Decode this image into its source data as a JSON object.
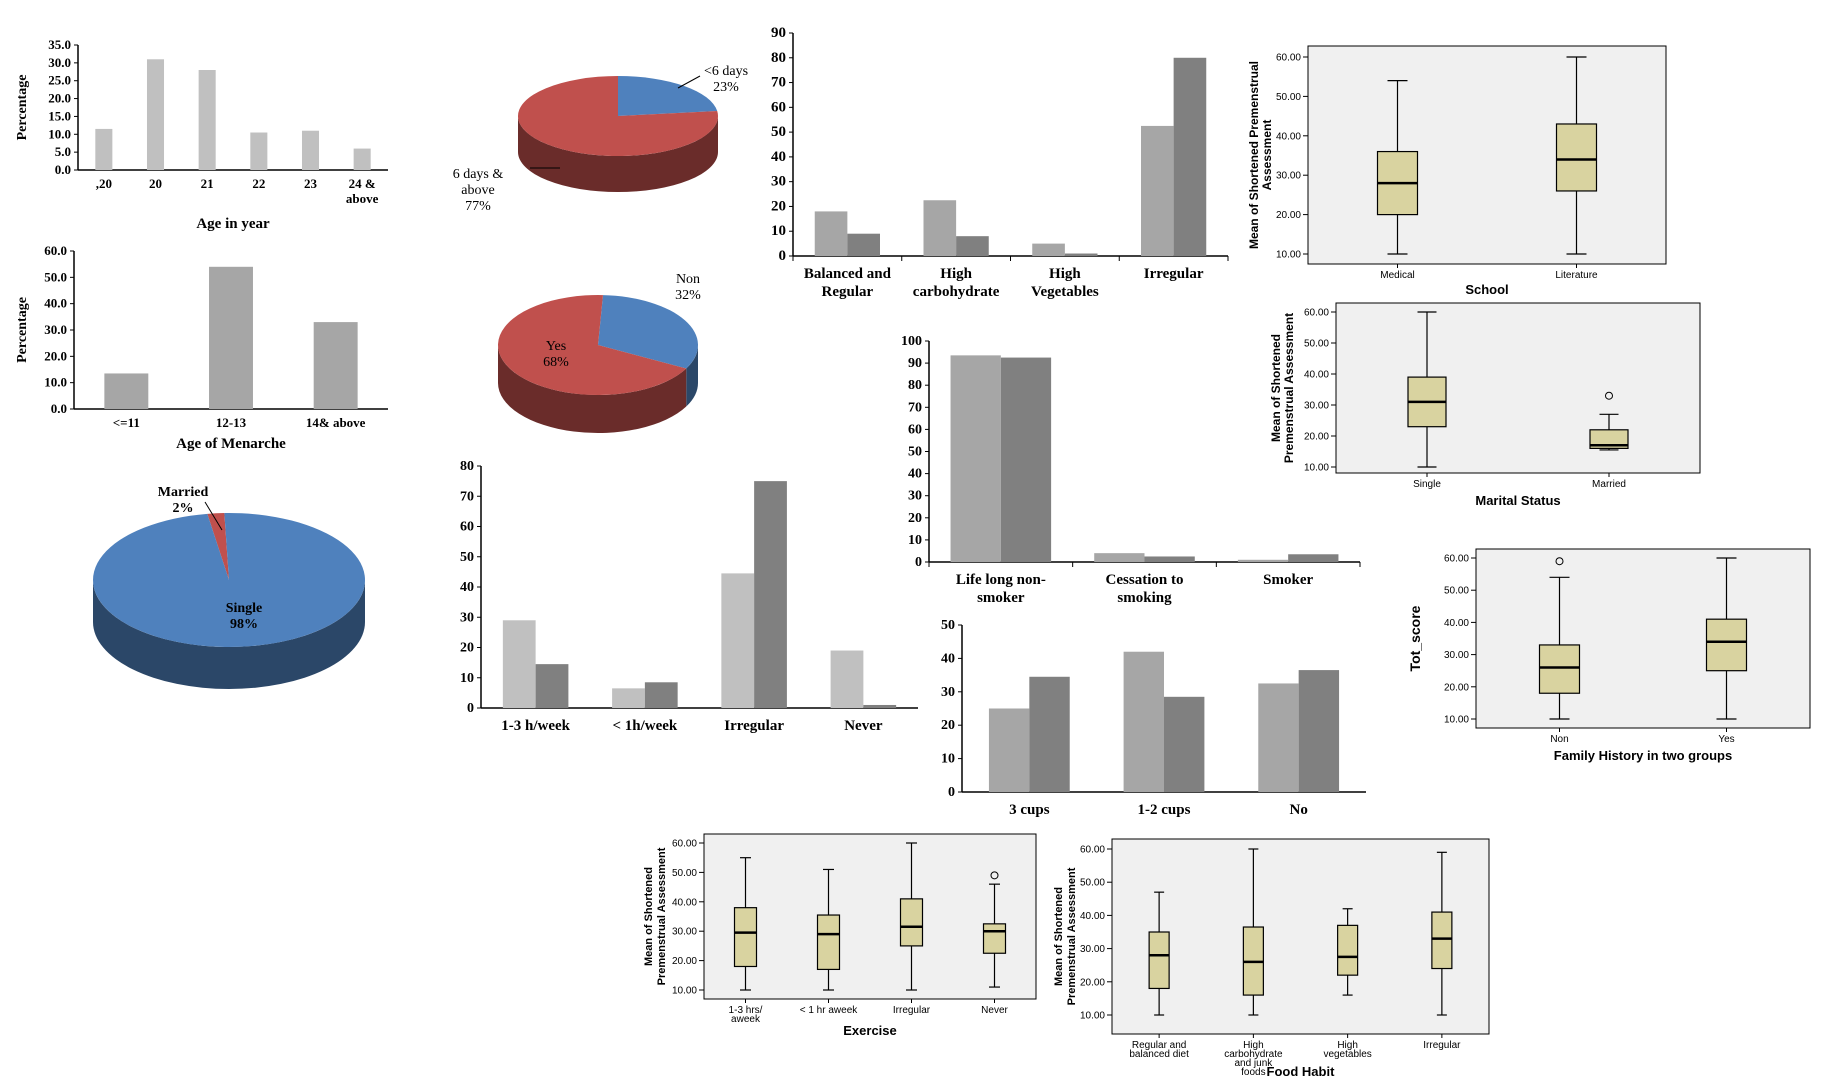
{
  "chart_data": [
    {
      "id": "c1",
      "type": "bar",
      "categories": [
        ",20",
        "20",
        "21",
        "22",
        "23",
        "24 & above"
      ],
      "values": [
        11.5,
        31.0,
        28.0,
        10.5,
        11.0,
        6.0
      ],
      "ylim": [
        0,
        35
      ],
      "yticks": [
        "0.0",
        "5.0",
        "10.0",
        "15.0",
        "20.0",
        "25.0",
        "30.0",
        "35.0"
      ],
      "xlabel": "Age in year",
      "ylabel": "Percentage",
      "colors": [
        "#c0c0c0"
      ]
    },
    {
      "id": "c2",
      "type": "pie",
      "slices": [
        {
          "label": "<6 days",
          "value": 23,
          "text": "23%",
          "color": "#4f81bd"
        },
        {
          "label": "6 days & above",
          "value": 77,
          "text": "77%",
          "color": "#c0504d"
        }
      ]
    },
    {
      "id": "c3",
      "type": "bar",
      "categories": [
        "Balanced and Regular",
        "High carbohydrate",
        "High Vegetables",
        "Irregular"
      ],
      "series": [
        {
          "values": [
            18,
            22.5,
            5,
            52.5
          ]
        },
        {
          "values": [
            9,
            8,
            1,
            80
          ]
        }
      ],
      "ylim": [
        0,
        90
      ],
      "yticks": [
        "0",
        "10",
        "20",
        "30",
        "40",
        "50",
        "60",
        "70",
        "80",
        "90"
      ],
      "colors": [
        "#a6a6a6",
        "#808080"
      ]
    },
    {
      "id": "c4",
      "type": "boxplot",
      "categories": [
        "Medical",
        "Literature"
      ],
      "boxes": [
        {
          "min": 10,
          "q1": 20,
          "median": 28,
          "q3": 36,
          "max": 54
        },
        {
          "min": 10,
          "q1": 26,
          "median": 34,
          "q3": 43,
          "max": 60
        }
      ],
      "ylim": [
        10,
        60
      ],
      "yticks": [
        "10.00",
        "20.00",
        "30.00",
        "40.00",
        "50.00",
        "60.00"
      ],
      "xlabel": "School",
      "ylabel": "Mean of Shortened Premenstrual Assessment"
    },
    {
      "id": "c5",
      "type": "bar",
      "categories": [
        "<=11",
        "12-13",
        "14& above"
      ],
      "values": [
        13.5,
        54.0,
        33.0
      ],
      "ylim": [
        0,
        60
      ],
      "yticks": [
        "0.0",
        "10.0",
        "20.0",
        "30.0",
        "40.0",
        "50.0",
        "60.0"
      ],
      "xlabel": "Age of Menarche",
      "ylabel": "Percentage",
      "colors": [
        "#a6a6a6"
      ]
    },
    {
      "id": "c6",
      "type": "pie",
      "slices": [
        {
          "label": "Non",
          "value": 32,
          "text": "32%",
          "color": "#4f81bd"
        },
        {
          "label": "Yes",
          "value": 68,
          "text": "68%",
          "color": "#c0504d"
        }
      ]
    },
    {
      "id": "c7",
      "type": "boxplot",
      "categories": [
        "Single",
        "Married"
      ],
      "boxes": [
        {
          "min": 10,
          "q1": 23,
          "median": 31,
          "q3": 39,
          "max": 60
        },
        {
          "min": 15.5,
          "q1": 16,
          "median": 17,
          "q3": 22,
          "max": 27,
          "outliers": [
            33
          ]
        }
      ],
      "ylim": [
        10,
        60
      ],
      "yticks": [
        "10.00",
        "20.00",
        "30.00",
        "40.00",
        "50.00",
        "60.00"
      ],
      "xlabel": "Marital Status",
      "ylabel": "Mean of Shortened Premenstrual Assessment"
    },
    {
      "id": "c8",
      "type": "pie",
      "slices": [
        {
          "label": "Married",
          "value": 2,
          "text": "2%",
          "color": "#c0504d"
        },
        {
          "label": "Single",
          "value": 98,
          "text": "98%",
          "color": "#4f81bd"
        }
      ]
    },
    {
      "id": "c9",
      "type": "bar",
      "categories": [
        "1-3 h/week",
        "< 1h/week",
        "Irregular",
        "Never"
      ],
      "series": [
        {
          "values": [
            29,
            6.5,
            44.5,
            19
          ]
        },
        {
          "values": [
            14.5,
            8.5,
            75,
            1
          ]
        }
      ],
      "ylim": [
        0,
        80
      ],
      "yticks": [
        "0",
        "10",
        "20",
        "30",
        "40",
        "50",
        "60",
        "70",
        "80"
      ],
      "colors": [
        "#c0c0c0",
        "#808080"
      ]
    },
    {
      "id": "c10",
      "type": "bar",
      "categories": [
        "Life long non-smoker",
        "Cessation to smoking",
        "Smoker"
      ],
      "series": [
        {
          "values": [
            93.5,
            4,
            1
          ]
        },
        {
          "values": [
            92.5,
            2.5,
            3.5
          ]
        }
      ],
      "ylim": [
        0,
        100
      ],
      "yticks": [
        "0",
        "10",
        "20",
        "30",
        "40",
        "50",
        "60",
        "70",
        "80",
        "90",
        "100"
      ],
      "colors": [
        "#a6a6a6",
        "#808080"
      ]
    },
    {
      "id": "c11",
      "type": "boxplot",
      "categories": [
        "Non",
        "Yes"
      ],
      "boxes": [
        {
          "min": 10,
          "q1": 18,
          "median": 26,
          "q3": 33,
          "max": 54,
          "outliers": [
            59
          ]
        },
        {
          "min": 10,
          "q1": 25,
          "median": 34,
          "q3": 41,
          "max": 60
        }
      ],
      "ylim": [
        10,
        60
      ],
      "yticks": [
        "10.00",
        "20.00",
        "30.00",
        "40.00",
        "50.00",
        "60.00"
      ],
      "xlabel": "Family History in two groups",
      "ylabel": "Tot_score"
    },
    {
      "id": "c12",
      "type": "bar",
      "categories": [
        "3 cups",
        "1-2 cups",
        "No"
      ],
      "series": [
        {
          "values": [
            25,
            42,
            32.5
          ]
        },
        {
          "values": [
            34.5,
            28.5,
            36.5
          ]
        }
      ],
      "ylim": [
        0,
        50
      ],
      "yticks": [
        "0",
        "10",
        "20",
        "30",
        "40",
        "50"
      ],
      "colors": [
        "#a6a6a6",
        "#808080"
      ]
    },
    {
      "id": "c13",
      "type": "boxplot",
      "categories": [
        "1-3 hrs/ aweek",
        "< 1 hr aweek",
        "Irregular",
        "Never"
      ],
      "boxes": [
        {
          "min": 10,
          "q1": 18,
          "median": 29.5,
          "q3": 38,
          "max": 55
        },
        {
          "min": 10,
          "q1": 17,
          "median": 29,
          "q3": 35.5,
          "max": 51
        },
        {
          "min": 10,
          "q1": 25,
          "median": 31.5,
          "q3": 41,
          "max": 60
        },
        {
          "min": 11,
          "q1": 22.5,
          "median": 30,
          "q3": 32.5,
          "max": 46,
          "outliers": [
            49
          ]
        }
      ],
      "ylim": [
        10,
        60
      ],
      "yticks": [
        "10.00",
        "20.00",
        "30.00",
        "40.00",
        "50.00",
        "60.00"
      ],
      "xlabel": "Exercise",
      "ylabel": "Mean of Shortened Premenstrual Assessment"
    },
    {
      "id": "c14",
      "type": "boxplot",
      "categories": [
        "Regular and balanced diet",
        "High carbohydrate and junk foods",
        "High vegetables",
        "Irregular"
      ],
      "boxes": [
        {
          "min": 10,
          "q1": 18,
          "median": 28,
          "q3": 35,
          "max": 47
        },
        {
          "min": 10,
          "q1": 16,
          "median": 26,
          "q3": 36.5,
          "max": 60
        },
        {
          "min": 16,
          "q1": 22,
          "median": 27.5,
          "q3": 37,
          "max": 42
        },
        {
          "min": 10,
          "q1": 24,
          "median": 33,
          "q3": 41,
          "max": 59
        }
      ],
      "ylim": [
        10,
        60
      ],
      "yticks": [
        "10.00",
        "20.00",
        "30.00",
        "40.00",
        "50.00",
        "60.00"
      ],
      "xlabel": "Food Habit",
      "ylabel": "Mean of Shortened Premenstrual Assessment"
    }
  ]
}
